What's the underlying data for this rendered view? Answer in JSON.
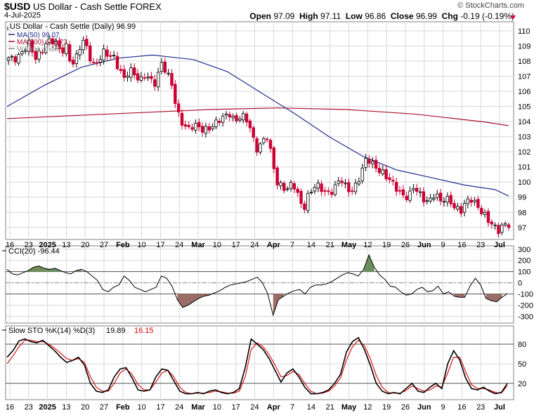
{
  "header": {
    "symbol": "$USD",
    "name": "US Dollar - Cash Settle FOREX",
    "date": "4-Jul-2025",
    "brand": "© StockCharts.com",
    "open_label": "Open",
    "open": "97.09",
    "high_label": "High",
    "high": "97.11",
    "low_label": "Low",
    "low": "96.86",
    "close_label": "Close",
    "close": "96.99",
    "chg_label": "Chg",
    "chg": "-0.19 (-0.19%)"
  },
  "colors": {
    "up": "#000000",
    "down": "#cc0033",
    "ma50": "#1f2f8f",
    "ma200": "#aa1133",
    "cci_pos": "#6b8e5a",
    "cci_neg": "#9c6d66",
    "k_line": "#000000",
    "d_line": "#e00000"
  },
  "chart_data": [
    {
      "type": "candlestick",
      "title": "US Dollar - Cash Settle (Daily) 96.99",
      "legend": [
        {
          "label": "MA(50) 99.07",
          "color": "#1f2f8f"
        },
        {
          "label": "MA(200) 103.73",
          "color": "#aa1133"
        },
        {
          "label": "Volume undef",
          "color": "#888888"
        }
      ],
      "ylim": [
        96.2,
        110.6
      ],
      "y_ticks": [
        97,
        98,
        99,
        100,
        101,
        102,
        103,
        104,
        105,
        106,
        107,
        108,
        109,
        110
      ],
      "x_ticks": [
        "16",
        "23",
        "2025",
        "13",
        "20",
        "27",
        "Feb",
        "10",
        "17",
        "24",
        "Mar",
        "10",
        "17",
        "24",
        "Apr",
        "7",
        "14",
        "21",
        "May",
        "12",
        "19",
        "26",
        "Jun",
        "9",
        "16",
        "23",
        "Jul"
      ],
      "bold_x_ticks": [
        "2025",
        "Feb",
        "Mar",
        "Apr",
        "May",
        "Jun",
        "Jul"
      ],
      "anchors": [
        108.1,
        108.0,
        108.4,
        108.9,
        109.2,
        108.0,
        108.5,
        109.2,
        109.5,
        109.1,
        108.5,
        109.0,
        107.8,
        108.3,
        109.3,
        108.8,
        107.8,
        108.0,
        108.5,
        108.3,
        108.3,
        107.6,
        106.8,
        107.3,
        107.1,
        106.8,
        107.2,
        106.6,
        106.4,
        108.0,
        107.4,
        106.5,
        104.5,
        103.9,
        103.6,
        103.8,
        103.6,
        103.3,
        103.6,
        103.9,
        104.1,
        104.2,
        104.5,
        104.1,
        104.4,
        104.2,
        103.4,
        102.2,
        102.6,
        103.2,
        101.5,
        99.9,
        99.8,
        99.6,
        99.9,
        99.0,
        98.2,
        99.3,
        99.7,
        99.6,
        99.3,
        99.4,
        99.7,
        100.2,
        99.6,
        99.4,
        99.9,
        100.6,
        101.5,
        101.2,
        101.0,
        100.7,
        100.2,
        99.8,
        99.5,
        99.2,
        99.0,
        99.6,
        99.2,
        98.9,
        98.8,
        99.2,
        98.6,
        99.0,
        98.8,
        98.2,
        98.0,
        98.7,
        99.0,
        98.5,
        97.9,
        97.4,
        97.2,
        96.9,
        97.2,
        96.99
      ],
      "ma50": [
        [
          0,
          105.0
        ],
        [
          11,
          106.4
        ],
        [
          22,
          107.6
        ],
        [
          33,
          108.2
        ],
        [
          43,
          108.4
        ],
        [
          55,
          108.1
        ],
        [
          65,
          107.3
        ],
        [
          75,
          105.9
        ],
        [
          85,
          104.5
        ],
        [
          95,
          103.0
        ],
        [
          105,
          101.7
        ],
        [
          115,
          100.8
        ],
        [
          125,
          100.3
        ],
        [
          135,
          99.8
        ],
        [
          144,
          99.5
        ],
        [
          148,
          99.07
        ]
      ],
      "ma200": [
        [
          0,
          104.2
        ],
        [
          20,
          104.4
        ],
        [
          40,
          104.6
        ],
        [
          60,
          104.8
        ],
        [
          80,
          104.9
        ],
        [
          100,
          104.8
        ],
        [
          120,
          104.5
        ],
        [
          140,
          104.0
        ],
        [
          148,
          103.73
        ]
      ]
    },
    {
      "type": "line",
      "title": "CCI(20) -96.44",
      "ylim": [
        -360,
        330
      ],
      "y_ticks": [
        300,
        200,
        100,
        0,
        -100,
        -200,
        -300
      ],
      "reference_lines": [
        100,
        -100
      ],
      "zero_line": 0,
      "values": [
        120,
        80,
        70,
        90,
        110,
        140,
        150,
        130,
        120,
        130,
        110,
        90,
        80,
        110,
        120,
        100,
        60,
        20,
        -60,
        -80,
        -40,
        -20,
        60,
        20,
        -40,
        -60,
        -80,
        -60,
        -40,
        60,
        40,
        -30,
        -150,
        -220,
        -200,
        -170,
        -140,
        -120,
        -110,
        -90,
        -70,
        -40,
        -20,
        -10,
        0,
        10,
        30,
        50,
        0,
        -100,
        -290,
        -150,
        -120,
        -90,
        -70,
        -60,
        -100,
        -40,
        -20,
        -20,
        -10,
        10,
        40,
        70,
        90,
        80,
        60,
        120,
        250,
        140,
        70,
        30,
        -30,
        -40,
        -80,
        -110,
        -100,
        -60,
        -40,
        -80,
        -70,
        -30,
        -100,
        -80,
        -120,
        -130,
        -130,
        -30,
        40,
        -20,
        -140,
        -160,
        -170,
        -130,
        -96.44
      ]
    },
    {
      "type": "line",
      "title": "Slow STO %K(14) %D(3)",
      "legend": [
        {
          "label": "%K 19.89",
          "color": "#000000"
        },
        {
          "label": "%D 16.15",
          "color": "#e00000"
        }
      ],
      "ylim": [
        -5,
        108
      ],
      "y_ticks": [
        80,
        50,
        20
      ],
      "reference_lines": [
        80,
        20
      ],
      "k_values": [
        60,
        70,
        85,
        88,
        84,
        82,
        86,
        78,
        70,
        60,
        52,
        55,
        60,
        48,
        20,
        8,
        6,
        10,
        30,
        42,
        44,
        28,
        10,
        8,
        10,
        30,
        42,
        40,
        24,
        8,
        4,
        4,
        6,
        4,
        8,
        10,
        6,
        4,
        6,
        12,
        44,
        88,
        80,
        72,
        58,
        40,
        22,
        36,
        42,
        30,
        14,
        4,
        4,
        6,
        10,
        20,
        34,
        68,
        84,
        90,
        72,
        48,
        20,
        8,
        4,
        6,
        4,
        12,
        20,
        8,
        6,
        14,
        20,
        12,
        50,
        70,
        56,
        28,
        12,
        10,
        14,
        8,
        4,
        6,
        19.89
      ],
      "d_values": [
        50,
        62,
        76,
        86,
        86,
        84,
        84,
        80,
        74,
        66,
        58,
        55,
        58,
        52,
        30,
        14,
        8,
        8,
        20,
        36,
        42,
        34,
        18,
        10,
        10,
        22,
        36,
        40,
        30,
        14,
        6,
        4,
        5,
        5,
        6,
        8,
        7,
        5,
        5,
        8,
        30,
        72,
        82,
        76,
        64,
        48,
        30,
        32,
        38,
        34,
        20,
        8,
        4,
        5,
        8,
        16,
        28,
        56,
        76,
        86,
        78,
        58,
        32,
        14,
        6,
        5,
        5,
        9,
        16,
        12,
        8,
        10,
        16,
        14,
        36,
        60,
        60,
        38,
        18,
        12,
        12,
        10,
        6,
        5,
        16.15
      ]
    }
  ]
}
